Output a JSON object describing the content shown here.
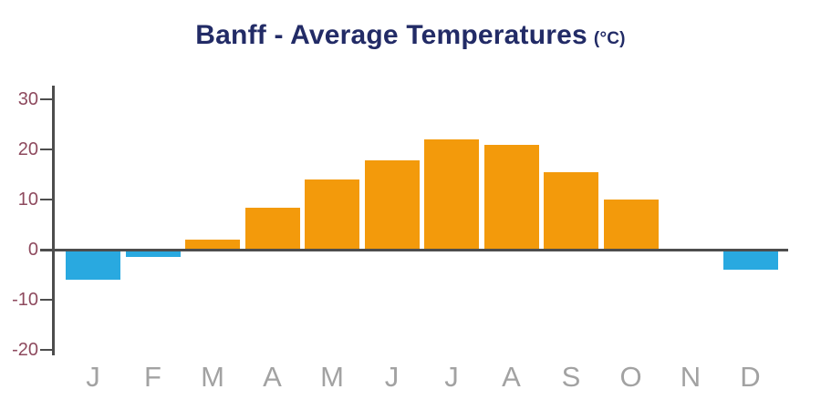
{
  "title": {
    "main": "Banff - Average Temperatures",
    "unit": "(°C)"
  },
  "colors": {
    "title": "#222B66",
    "positive_bar": "#F39A0B",
    "negative_bar": "#29A9E0",
    "axis": "#4D4D4D",
    "ytick_label": "#8E4A5E",
    "month_label": "#A2A2A2",
    "background": "#FFFFFF"
  },
  "chart_data": {
    "type": "bar",
    "title": "Banff - Average Temperatures (°C)",
    "categories": [
      "J",
      "F",
      "M",
      "A",
      "M",
      "J",
      "J",
      "A",
      "S",
      "O",
      "N",
      "D"
    ],
    "values": [
      -6,
      -1.5,
      2,
      8.3,
      14,
      17.8,
      22,
      21,
      15.5,
      10,
      0,
      -4
    ],
    "xlabel": "",
    "ylabel": "",
    "ylim": [
      -20,
      30
    ],
    "yticks": [
      30,
      20,
      10,
      0,
      -10,
      -20
    ],
    "grid": false,
    "legend": "none",
    "color_rule": "positive values orange, negative values blue, zero values not drawn"
  }
}
